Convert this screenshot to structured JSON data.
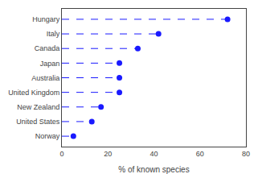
{
  "chart_data": {
    "type": "lollipop",
    "orientation": "horizontal",
    "categories": [
      "Hungary",
      "Italy",
      "Canada",
      "Japan",
      "Australia",
      "United Kingdom",
      "New Zealand",
      "United States",
      "Norway"
    ],
    "values": [
      72,
      42,
      33,
      25,
      25,
      25,
      17,
      13,
      5
    ],
    "color": "#1a1aff",
    "line_style": "dashed",
    "marker": "circle",
    "xlabel": "% of known species",
    "xlim": [
      0,
      80
    ],
    "xticks": [
      0,
      20,
      40,
      60,
      80
    ],
    "grid": false
  }
}
